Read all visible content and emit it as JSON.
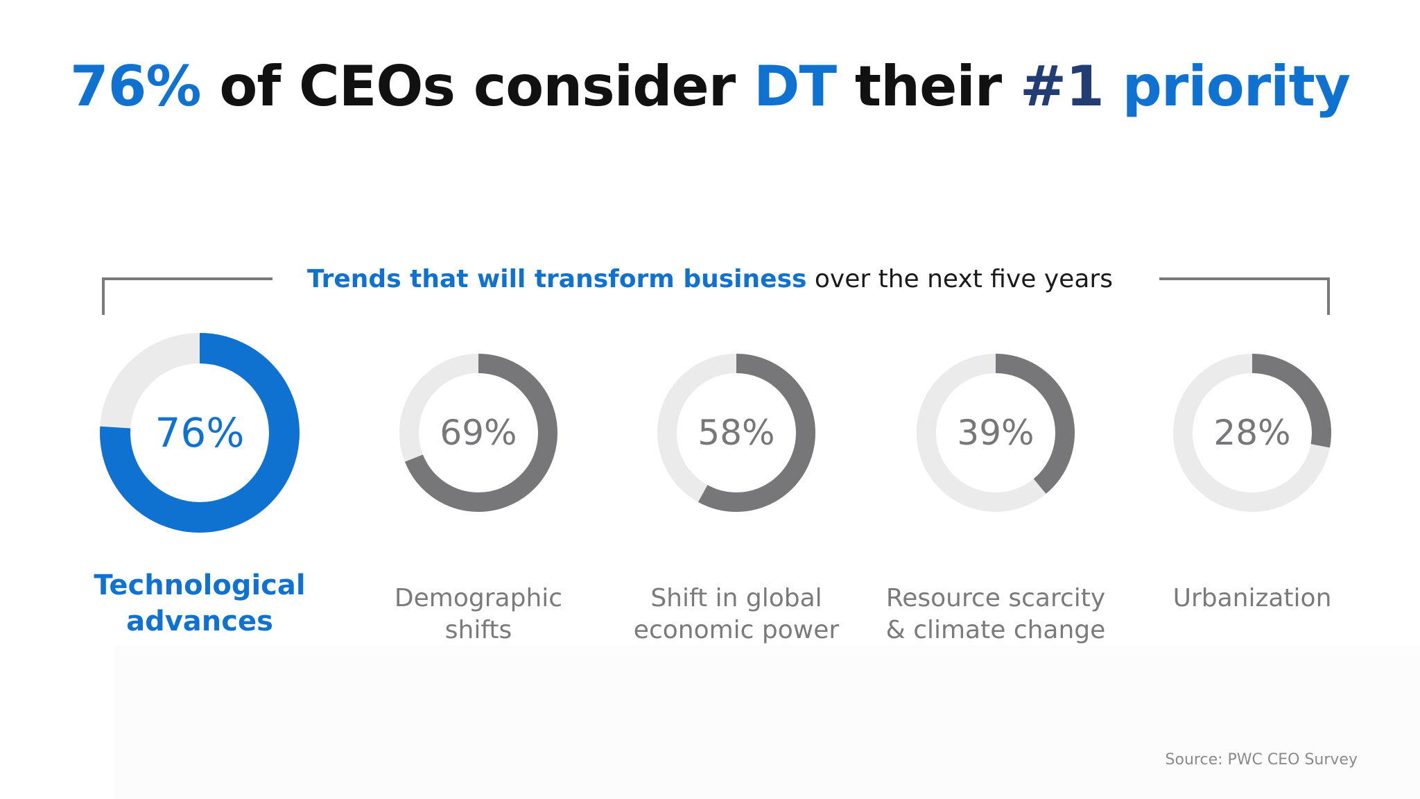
{
  "title": {
    "part1": "76%",
    "part2": " of CEOs consider ",
    "part3": "DT",
    "part4": " their ",
    "part5": "#1",
    "part6": " priority"
  },
  "subtitle": {
    "accent": "Trends that will transform business",
    "rest": " over the next five years"
  },
  "source": "Source: PWC CEO Survey",
  "colors": {
    "accent": "#0f72d1",
    "fill_gray": "#777678",
    "track": "#ebebeb"
  },
  "chart_data": {
    "type": "pie",
    "variant": "donut",
    "categories": [
      "Technological advances",
      "Demographic shifts",
      "Shift in global economic power",
      "Resource scarcity & climate change",
      "Urbanization"
    ],
    "values": [
      76,
      69,
      58,
      39,
      28
    ],
    "value_labels": [
      "76%",
      "69%",
      "58%",
      "39%",
      "28%"
    ],
    "label_lines": [
      [
        "Technological",
        "advances"
      ],
      [
        "Demographic",
        "shifts"
      ],
      [
        "Shift in global",
        "economic power"
      ],
      [
        "Resource scarcity",
        "& climate change"
      ],
      [
        "Urbanization"
      ]
    ],
    "highlight_index": 0
  }
}
